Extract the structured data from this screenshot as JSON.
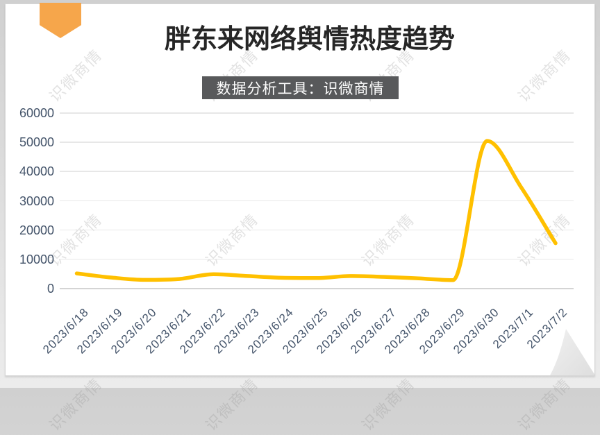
{
  "page": {
    "watermark_text": "识微商情"
  },
  "chart_data": {
    "type": "line",
    "title": "胖东来网络舆情热度趋势",
    "subtitle": "数据分析工具：识微商情",
    "categories": [
      "2023/6/18",
      "2023/6/19",
      "2023/6/20",
      "2023/6/21",
      "2023/6/22",
      "2023/6/23",
      "2023/6/24",
      "2023/6/25",
      "2023/6/26",
      "2023/6/27",
      "2023/6/28",
      "2023/6/29",
      "2023/6/30",
      "2023/7/1",
      "2023/7/2"
    ],
    "values": [
      5200,
      3800,
      3000,
      3300,
      4900,
      4300,
      3700,
      3600,
      4300,
      4000,
      3500,
      2900,
      50500,
      34500,
      15500
    ],
    "xlabel": "",
    "ylabel": "",
    "ylim": [
      0,
      60000
    ],
    "y_ticks": [
      "0",
      "10000",
      "20000",
      "30000",
      "40000",
      "50000",
      "60000"
    ],
    "x_label_rotation": 45,
    "grid": true,
    "legend": "none",
    "line_color": "#FFC000",
    "accent_color": "#F6A64B",
    "subtitle_bg": "#58595B",
    "subtitle_text_color": "#FFFFFF",
    "axis_label_color": "#44546A"
  }
}
